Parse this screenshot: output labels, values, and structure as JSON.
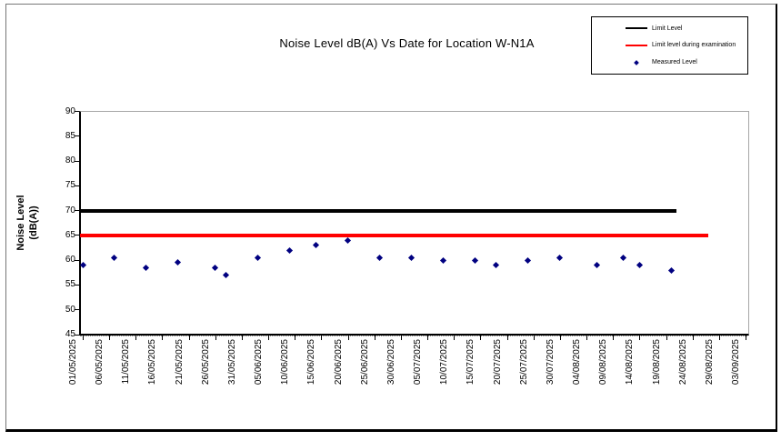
{
  "title": "Noise Level dB(A) Vs Date for Location W-N1A",
  "legend": {
    "items": [
      {
        "label": "Limit Level",
        "marker": "line",
        "color": "#000000"
      },
      {
        "label": "Limit level during examination",
        "marker": "line",
        "color": "#FF0000"
      },
      {
        "label": "Measured Level",
        "marker": "diamond",
        "color": "#000080"
      }
    ]
  },
  "chart_data": {
    "type": "scatter",
    "title": "Noise Level dB(A) Vs Date for Location W-N1A",
    "xlabel": "",
    "ylabel": "Noise Level (dB(A))",
    "ylabel_lines": [
      "Noise Level",
      "(dB(A))"
    ],
    "ylim": [
      45,
      90
    ],
    "yticks": [
      45,
      50,
      55,
      60,
      65,
      70,
      75,
      80,
      85,
      90
    ],
    "grid": false,
    "legend_position": "top-right",
    "x_axis": {
      "type": "date",
      "start": "01/05/2025",
      "end": "03/09/2025",
      "tick_interval_days": 5,
      "tick_labels": [
        "01/05/2025",
        "06/05/2025",
        "11/05/2025",
        "16/05/2025",
        "21/05/2025",
        "26/05/2025",
        "31/05/2025",
        "05/06/2025",
        "10/06/2025",
        "15/06/2025",
        "20/06/2025",
        "25/06/2025",
        "30/06/2025",
        "05/07/2025",
        "10/07/2025",
        "15/07/2025",
        "20/07/2025",
        "25/07/2025",
        "30/07/2025",
        "04/08/2025",
        "09/08/2025",
        "14/08/2025",
        "19/08/2025",
        "24/08/2025",
        "29/08/2025",
        "03/09/2025"
      ]
    },
    "series": [
      {
        "name": "Limit Level",
        "type": "hline",
        "color": "#000000",
        "value": 70,
        "start_day": 0,
        "end_day": 112
      },
      {
        "name": "Limit level during examination",
        "type": "hline",
        "color": "#FF0000",
        "value": 65,
        "start_day": 0,
        "end_day": 118
      },
      {
        "name": "Measured Level",
        "type": "scatter",
        "color": "#000080",
        "points": [
          {
            "date": "01/05/2025",
            "day": 0,
            "value": 59
          },
          {
            "date": "07/05/2025",
            "day": 6,
            "value": 60.5
          },
          {
            "date": "13/05/2025",
            "day": 12,
            "value": 58.5
          },
          {
            "date": "19/05/2025",
            "day": 18,
            "value": 59.5
          },
          {
            "date": "26/05/2025",
            "day": 25,
            "value": 58.5
          },
          {
            "date": "28/05/2025",
            "day": 27,
            "value": 57
          },
          {
            "date": "03/06/2025",
            "day": 33,
            "value": 60.5
          },
          {
            "date": "09/06/2025",
            "day": 39,
            "value": 62
          },
          {
            "date": "14/06/2025",
            "day": 44,
            "value": 63
          },
          {
            "date": "20/06/2025",
            "day": 50,
            "value": 64
          },
          {
            "date": "26/06/2025",
            "day": 56,
            "value": 60.5
          },
          {
            "date": "02/07/2025",
            "day": 62,
            "value": 60.5
          },
          {
            "date": "08/07/2025",
            "day": 68,
            "value": 60
          },
          {
            "date": "14/07/2025",
            "day": 74,
            "value": 60
          },
          {
            "date": "18/07/2025",
            "day": 78,
            "value": 59
          },
          {
            "date": "24/07/2025",
            "day": 84,
            "value": 60
          },
          {
            "date": "30/07/2025",
            "day": 90,
            "value": 60.5
          },
          {
            "date": "06/08/2025",
            "day": 97,
            "value": 59
          },
          {
            "date": "11/08/2025",
            "day": 102,
            "value": 60.5
          },
          {
            "date": "14/08/2025",
            "day": 105,
            "value": 59
          },
          {
            "date": "20/08/2025",
            "day": 111,
            "value": 58
          }
        ]
      }
    ]
  }
}
